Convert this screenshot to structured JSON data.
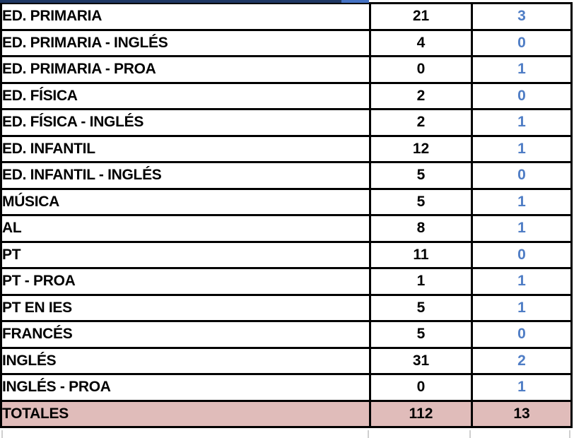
{
  "colors": {
    "accent_blue": "#4F7DC5",
    "totals_row_bg": "#E0BCBA",
    "header_sliver_navy": "#1F3864",
    "header_sliver_blue": "#4472C4",
    "grid_border": "#000000",
    "faint_gridline": "#CFCFCF"
  },
  "chart_data": {
    "type": "table",
    "columns": [
      "category",
      "count_primary",
      "count_secondary"
    ],
    "rows": [
      {
        "label": "ED. PRIMARIA",
        "value1": "21",
        "value2": "3"
      },
      {
        "label": "ED. PRIMARIA - INGLÉS",
        "value1": "4",
        "value2": "0"
      },
      {
        "label": "ED. PRIMARIA - PROA",
        "value1": "0",
        "value2": "1"
      },
      {
        "label": "ED. FÍSICA",
        "value1": "2",
        "value2": "0"
      },
      {
        "label": "ED. FÍSICA - INGLÉS",
        "value1": "2",
        "value2": "1"
      },
      {
        "label": "ED. INFANTIL",
        "value1": "12",
        "value2": "1"
      },
      {
        "label": "ED. INFANTIL - INGLÉS",
        "value1": "5",
        "value2": "0"
      },
      {
        "label": "MÚSICA",
        "value1": "5",
        "value2": "1"
      },
      {
        "label": "AL",
        "value1": "8",
        "value2": "1"
      },
      {
        "label": "PT",
        "value1": "11",
        "value2": "0"
      },
      {
        "label": "PT - PROA",
        "value1": "1",
        "value2": "1"
      },
      {
        "label": "PT EN IES",
        "value1": "5",
        "value2": "1"
      },
      {
        "label": "FRANCÉS",
        "value1": "5",
        "value2": "0"
      },
      {
        "label": "INGLÉS",
        "value1": "31",
        "value2": "2"
      },
      {
        "label": "INGLÉS - PROA",
        "value1": "0",
        "value2": "1"
      }
    ],
    "totals": {
      "label": "TOTALES",
      "value1": "112",
      "value2": "13"
    }
  }
}
